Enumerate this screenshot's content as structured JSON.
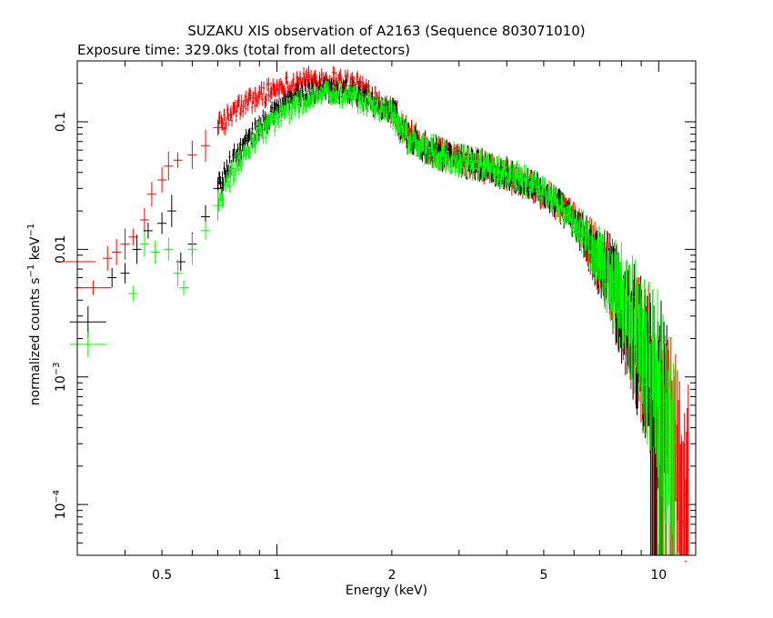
{
  "chart_data": {
    "type": "scatter",
    "title": "SUZAKU XIS observation of A2163 (Sequence 803071010)",
    "subtitle": "Exposure time: 329.0ks (total from all detectors)",
    "xlabel": "Energy (keV)",
    "ylabel_main": "normalized counts s",
    "ylabel_sup1": "−1",
    "ylabel_mid": " keV",
    "ylabel_sup2": "−1",
    "x_scale": "log",
    "y_scale": "log",
    "xlim": [
      0.3,
      12.5
    ],
    "ylim": [
      4e-05,
      0.3
    ],
    "x_ticks": [
      {
        "value": 0.5,
        "label": "0.5"
      },
      {
        "value": 1,
        "label": "1"
      },
      {
        "value": 2,
        "label": "2"
      },
      {
        "value": 5,
        "label": "5"
      },
      {
        "value": 10,
        "label": "10"
      }
    ],
    "y_ticks": [
      {
        "value": 0.1,
        "label": "0.1",
        "base": "",
        "exp": ""
      },
      {
        "value": 0.01,
        "label": "0.01",
        "base": "",
        "exp": ""
      },
      {
        "value": 0.001,
        "label": "",
        "base": "10",
        "exp": "−3"
      },
      {
        "value": 0.0001,
        "label": "",
        "base": "10",
        "exp": "−4"
      }
    ],
    "grid": false,
    "legend": "none",
    "series": [
      {
        "color": "#ff0000",
        "points": [
          [
            0.3,
            0.008
          ],
          [
            0.33,
            0.005
          ],
          [
            0.36,
            0.0085
          ],
          [
            0.38,
            0.0095
          ],
          [
            0.4,
            0.011
          ],
          [
            0.42,
            0.0125
          ],
          [
            0.45,
            0.017
          ],
          [
            0.47,
            0.027
          ],
          [
            0.5,
            0.035
          ],
          [
            0.52,
            0.045
          ],
          [
            0.55,
            0.05
          ],
          [
            0.6,
            0.055
          ],
          [
            0.65,
            0.065
          ],
          [
            0.7,
            0.09
          ],
          [
            0.75,
            0.11
          ],
          [
            0.8,
            0.13
          ],
          [
            0.9,
            0.16
          ],
          [
            1.0,
            0.185
          ],
          [
            1.1,
            0.2
          ],
          [
            1.2,
            0.21
          ],
          [
            1.3,
            0.215
          ],
          [
            1.4,
            0.215
          ],
          [
            1.5,
            0.205
          ],
          [
            1.6,
            0.195
          ],
          [
            1.7,
            0.18
          ],
          [
            1.8,
            0.155
          ],
          [
            2.0,
            0.125
          ],
          [
            2.2,
            0.08
          ],
          [
            2.5,
            0.06
          ],
          [
            3.0,
            0.05
          ],
          [
            3.5,
            0.044
          ],
          [
            4.0,
            0.038
          ],
          [
            4.5,
            0.032
          ],
          [
            5.0,
            0.027
          ],
          [
            5.5,
            0.022
          ],
          [
            6.0,
            0.017
          ],
          [
            6.5,
            0.012
          ],
          [
            7.0,
            0.008
          ],
          [
            7.5,
            0.0055
          ],
          [
            8.0,
            0.0035
          ],
          [
            8.5,
            0.0025
          ],
          [
            9.0,
            0.0017
          ],
          [
            9.5,
            0.0011
          ],
          [
            10.0,
            0.0007
          ],
          [
            10.5,
            0.0004
          ],
          [
            11.0,
            0.0002
          ],
          [
            11.5,
            0.00012
          ],
          [
            12.0,
            7e-05
          ]
        ]
      },
      {
        "color": "#000000",
        "points": [
          [
            0.32,
            0.0027
          ],
          [
            0.37,
            0.006
          ],
          [
            0.4,
            0.0065
          ],
          [
            0.43,
            0.01
          ],
          [
            0.46,
            0.014
          ],
          [
            0.5,
            0.016
          ],
          [
            0.53,
            0.02
          ],
          [
            0.56,
            0.008
          ],
          [
            0.6,
            0.011
          ],
          [
            0.65,
            0.018
          ],
          [
            0.7,
            0.03
          ],
          [
            0.75,
            0.045
          ],
          [
            0.8,
            0.06
          ],
          [
            0.9,
            0.09
          ],
          [
            1.0,
            0.125
          ],
          [
            1.1,
            0.15
          ],
          [
            1.2,
            0.17
          ],
          [
            1.3,
            0.18
          ],
          [
            1.4,
            0.18
          ],
          [
            1.5,
            0.175
          ],
          [
            1.6,
            0.165
          ],
          [
            1.8,
            0.14
          ],
          [
            2.0,
            0.12
          ],
          [
            2.2,
            0.075
          ],
          [
            2.5,
            0.06
          ],
          [
            3.0,
            0.05
          ],
          [
            3.5,
            0.045
          ],
          [
            4.0,
            0.04
          ],
          [
            4.5,
            0.034
          ],
          [
            5.0,
            0.028
          ],
          [
            5.5,
            0.022
          ],
          [
            6.0,
            0.016
          ],
          [
            6.5,
            0.0115
          ],
          [
            7.0,
            0.008
          ],
          [
            7.5,
            0.0055
          ],
          [
            8.0,
            0.0036
          ],
          [
            8.5,
            0.0024
          ],
          [
            9.0,
            0.0016
          ],
          [
            9.5,
            0.0011
          ],
          [
            10.0,
            0.0008
          ],
          [
            10.5,
            0.0005
          ]
        ]
      },
      {
        "color": "#00ff00",
        "points": [
          [
            0.32,
            0.0018
          ],
          [
            0.42,
            0.0045
          ],
          [
            0.45,
            0.011
          ],
          [
            0.48,
            0.0095
          ],
          [
            0.52,
            0.01
          ],
          [
            0.55,
            0.0065
          ],
          [
            0.57,
            0.005
          ],
          [
            0.6,
            0.01
          ],
          [
            0.65,
            0.014
          ],
          [
            0.7,
            0.022
          ],
          [
            0.75,
            0.035
          ],
          [
            0.8,
            0.05
          ],
          [
            0.9,
            0.08
          ],
          [
            1.0,
            0.105
          ],
          [
            1.1,
            0.13
          ],
          [
            1.2,
            0.15
          ],
          [
            1.3,
            0.16
          ],
          [
            1.4,
            0.165
          ],
          [
            1.5,
            0.16
          ],
          [
            1.6,
            0.155
          ],
          [
            1.8,
            0.135
          ],
          [
            2.0,
            0.115
          ],
          [
            2.2,
            0.075
          ],
          [
            2.5,
            0.06
          ],
          [
            3.0,
            0.05
          ],
          [
            3.5,
            0.045
          ],
          [
            4.0,
            0.04
          ],
          [
            4.5,
            0.034
          ],
          [
            5.0,
            0.028
          ],
          [
            5.5,
            0.022
          ],
          [
            6.0,
            0.0165
          ],
          [
            6.5,
            0.012
          ],
          [
            7.0,
            0.0085
          ],
          [
            7.5,
            0.006
          ],
          [
            8.0,
            0.004
          ],
          [
            8.5,
            0.0027
          ],
          [
            9.0,
            0.0018
          ],
          [
            9.5,
            0.0012
          ],
          [
            10.0,
            0.0008
          ],
          [
            10.5,
            0.0004
          ],
          [
            11.0,
            0.0003
          ]
        ]
      }
    ]
  }
}
